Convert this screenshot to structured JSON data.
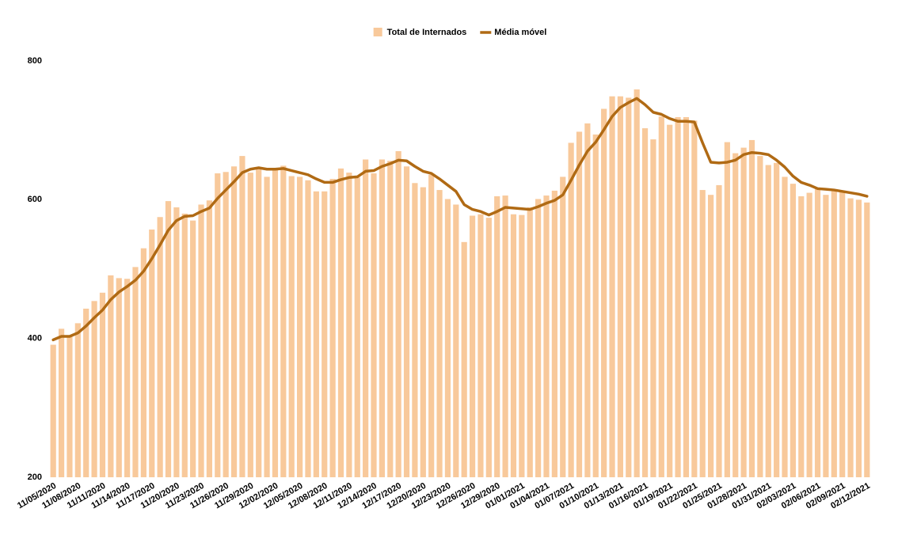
{
  "chart_data": {
    "type": "bar",
    "categories": [
      "11/05/2020",
      null,
      null,
      "11/08/2020",
      null,
      null,
      "11/11/2020",
      null,
      null,
      "11/14/2020",
      null,
      null,
      "11/17/2020",
      null,
      null,
      "11/20/2020",
      null,
      null,
      "11/23/2020",
      null,
      null,
      "11/26/2020",
      null,
      null,
      "11/29/2020",
      null,
      null,
      "12/02/2020",
      null,
      null,
      "12/05/2020",
      null,
      null,
      "12/08/2020",
      null,
      null,
      "12/11/2020",
      null,
      null,
      "12/14/2020",
      null,
      null,
      "12/17/2020",
      null,
      null,
      "12/20/2020",
      null,
      null,
      "12/23/2020",
      null,
      null,
      "12/26/2020",
      null,
      null,
      "12/29/2020",
      null,
      null,
      "01/01/2021",
      null,
      null,
      "01/04/2021",
      null,
      null,
      "01/07/2021",
      null,
      null,
      "01/10/2021",
      null,
      null,
      "01/13/2021",
      null,
      null,
      "01/16/2021",
      null,
      null,
      "01/19/2021",
      null,
      null,
      "01/22/2021",
      null,
      null,
      "01/25/2021",
      null,
      null,
      "01/28/2021",
      null,
      null,
      "01/31/2021",
      null,
      null,
      "02/03/2021",
      null,
      null,
      "02/06/2021",
      null,
      null,
      "02/09/2021",
      null,
      null,
      "02/12/2021"
    ],
    "series": [
      {
        "name": "Total de Internados",
        "type": "bar",
        "color": "#f8c99b",
        "values": [
          391,
          414,
          403,
          422,
          443,
          454,
          466,
          491,
          487,
          486,
          503,
          530,
          557,
          575,
          598,
          589,
          580,
          570,
          593,
          599,
          638,
          640,
          648,
          663,
          639,
          644,
          633,
          645,
          649,
          634,
          633,
          628,
          612,
          612,
          630,
          645,
          639,
          632,
          658,
          638,
          658,
          656,
          670,
          648,
          624,
          618,
          636,
          614,
          601,
          593,
          539,
          577,
          579,
          574,
          605,
          606,
          579,
          578,
          589,
          601,
          606,
          613,
          633,
          682,
          698,
          710,
          694,
          731,
          749,
          749,
          747,
          759,
          703,
          687,
          720,
          708,
          719,
          719,
          714,
          614,
          607,
          621,
          683,
          667,
          675,
          686,
          663,
          650,
          653,
          633,
          623,
          605,
          610,
          616,
          607,
          614,
          611,
          602,
          600,
          596
        ]
      },
      {
        "name": "Média móvel",
        "type": "line",
        "color": "#b06a14",
        "values": [
          398,
          403,
          403,
          408,
          418,
          430,
          441,
          456,
          467,
          475,
          484,
          497,
          515,
          535,
          556,
          570,
          576,
          577,
          583,
          588,
          602,
          614,
          626,
          639,
          644,
          646,
          644,
          644,
          645,
          642,
          639,
          636,
          630,
          625,
          625,
          629,
          632,
          633,
          641,
          642,
          648,
          652,
          657,
          656,
          648,
          641,
          638,
          630,
          621,
          612,
          593,
          586,
          583,
          578,
          583,
          589,
          588,
          587,
          586,
          590,
          595,
          599,
          607,
          628,
          650,
          670,
          683,
          701,
          720,
          733,
          740,
          746,
          737,
          726,
          723,
          717,
          713,
          713,
          712,
          682,
          654,
          653,
          654,
          657,
          665,
          668,
          667,
          665,
          657,
          647,
          634,
          625,
          621,
          616,
          615,
          614,
          612,
          610,
          608,
          605
        ]
      }
    ],
    "ylim": [
      200,
      800
    ],
    "yticks": [
      200,
      400,
      600,
      800
    ]
  }
}
